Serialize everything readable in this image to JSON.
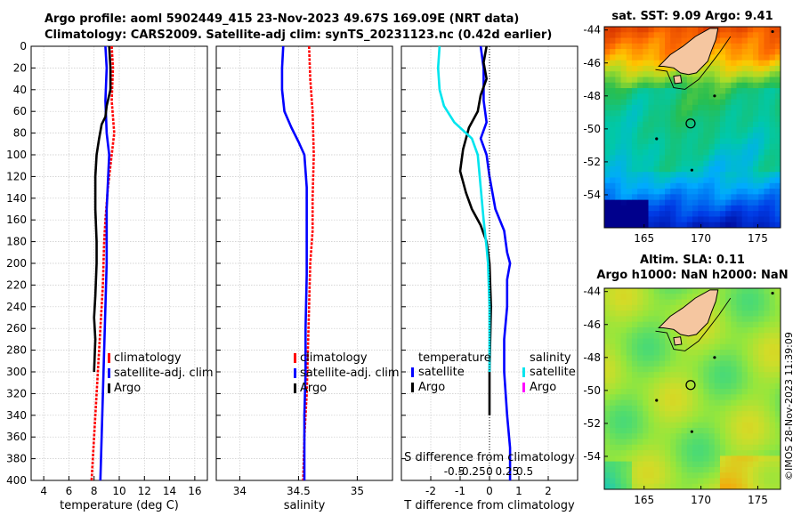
{
  "titles": {
    "line1": "Argo profile: aoml 5902449_415 23-Nov-2023 49.67S 169.09E (NRT data)",
    "line2": "Climatology: CARS2009. Satellite-adj clim: synTS_20231123.nc (0.42d earlier)"
  },
  "stamp": "©IMOS 28-Nov-2023 11:39:09",
  "colors": {
    "climatology": "#ff0000",
    "satellite": "#0000ff",
    "argo": "#000000",
    "satellite_salinity": "#00e5ee",
    "argo_salinity": "#ff00ff",
    "land": "#f5c6a0"
  },
  "chart_data": [
    {
      "type": "line",
      "id": "temperature",
      "xlabel": "temperature (deg C)",
      "ylabel": "",
      "xlim": [
        3,
        17
      ],
      "ylim": [
        0,
        400
      ],
      "xticks": [
        4,
        6,
        8,
        10,
        12,
        14,
        16
      ],
      "yticks": [
        0,
        20,
        40,
        60,
        80,
        100,
        120,
        140,
        160,
        180,
        200,
        220,
        240,
        260,
        280,
        300,
        320,
        340,
        360,
        380,
        400
      ],
      "grid": true,
      "legend": {
        "position": "bottom-right",
        "entries": [
          "climatology",
          "satellite-adj. clim",
          "Argo"
        ]
      },
      "series": [
        {
          "name": "climatology",
          "color": "#ff0000",
          "points": [
            [
              9.4,
              0
            ],
            [
              9.5,
              20
            ],
            [
              9.4,
              50
            ],
            [
              9.6,
              80
            ],
            [
              9.3,
              110
            ],
            [
              9.1,
              130
            ],
            [
              8.9,
              160
            ],
            [
              8.8,
              180
            ],
            [
              8.7,
              220
            ],
            [
              8.5,
              260
            ],
            [
              8.3,
              300
            ],
            [
              8.1,
              340
            ],
            [
              7.9,
              380
            ],
            [
              7.8,
              400
            ]
          ]
        },
        {
          "name": "satellite-adj. clim",
          "color": "#0000ff",
          "points": [
            [
              8.9,
              0
            ],
            [
              9.0,
              20
            ],
            [
              8.9,
              50
            ],
            [
              9.0,
              80
            ],
            [
              9.2,
              100
            ],
            [
              9.0,
              150
            ],
            [
              9.0,
              200
            ],
            [
              8.9,
              240
            ],
            [
              8.8,
              280
            ],
            [
              8.7,
              320
            ],
            [
              8.6,
              360
            ],
            [
              8.5,
              400
            ]
          ]
        },
        {
          "name": "Argo",
          "color": "#000000",
          "points": [
            [
              9.2,
              0
            ],
            [
              9.3,
              20
            ],
            [
              9.3,
              40
            ],
            [
              9.0,
              55
            ],
            [
              8.9,
              65
            ],
            [
              8.6,
              72
            ],
            [
              8.4,
              85
            ],
            [
              8.2,
              100
            ],
            [
              8.1,
              120
            ],
            [
              8.1,
              150
            ],
            [
              8.2,
              180
            ],
            [
              8.2,
              200
            ],
            [
              8.1,
              230
            ],
            [
              8.0,
              250
            ],
            [
              8.1,
              270
            ],
            [
              8.0,
              300
            ]
          ]
        }
      ]
    },
    {
      "type": "line",
      "id": "salinity",
      "xlabel": "salinity",
      "ylabel": "",
      "xlim": [
        33.8,
        35.3
      ],
      "ylim": [
        0,
        400
      ],
      "xticks": [
        34,
        34.5,
        35
      ],
      "grid": true,
      "legend": {
        "position": "bottom-right",
        "entries": [
          "climatology",
          "satellite-adj. clim",
          "Argo"
        ]
      },
      "series": [
        {
          "name": "climatology",
          "color": "#ff0000",
          "points": [
            [
              34.59,
              0
            ],
            [
              34.6,
              30
            ],
            [
              34.62,
              60
            ],
            [
              34.63,
              100
            ],
            [
              34.62,
              140
            ],
            [
              34.62,
              170
            ],
            [
              34.6,
              200
            ],
            [
              34.59,
              240
            ],
            [
              34.58,
              280
            ],
            [
              34.57,
              320
            ],
            [
              34.55,
              360
            ],
            [
              34.54,
              400
            ]
          ]
        },
        {
          "name": "satellite-adj. clim",
          "color": "#0000ff",
          "points": [
            [
              34.37,
              0
            ],
            [
              34.36,
              20
            ],
            [
              34.36,
              40
            ],
            [
              34.38,
              60
            ],
            [
              34.44,
              75
            ],
            [
              34.5,
              88
            ],
            [
              34.55,
              100
            ],
            [
              34.57,
              130
            ],
            [
              34.57,
              170
            ],
            [
              34.57,
              210
            ],
            [
              34.56,
              260
            ],
            [
              34.56,
              300
            ],
            [
              34.55,
              340
            ],
            [
              34.55,
              380
            ],
            [
              34.55,
              400
            ]
          ]
        }
      ]
    },
    {
      "type": "line",
      "id": "difference",
      "xlabel": "T difference from climatology",
      "xlabel_top": "S difference from climatology",
      "ylabel": "",
      "xlim": [
        -3,
        3
      ],
      "ylim": [
        0,
        400
      ],
      "xticks": [
        -2,
        -1,
        0,
        1,
        2
      ],
      "xtick_labels": [
        "-2",
        "-1",
        "0",
        "1",
        "2"
      ],
      "s_ticks": [
        -0.5,
        -0.25,
        0,
        0.25,
        0.5
      ],
      "s_tick_labels": [
        "-0.5",
        "-0.25",
        "0",
        "0.25",
        "0.5"
      ],
      "grid": true,
      "legend_left": {
        "title": "temperature",
        "entries": [
          "satellite",
          "Argo"
        ]
      },
      "legend_right": {
        "title": "salinity",
        "entries": [
          "satellite",
          "Argo"
        ]
      },
      "series": [
        {
          "name": "temperature satellite",
          "color": "#0000ff",
          "points": [
            [
              -0.3,
              0
            ],
            [
              -0.2,
              20
            ],
            [
              -0.2,
              50
            ],
            [
              -0.1,
              70
            ],
            [
              -0.3,
              85
            ],
            [
              -0.1,
              100
            ],
            [
              0.0,
              120
            ],
            [
              0.2,
              150
            ],
            [
              0.5,
              170
            ],
            [
              0.6,
              190
            ],
            [
              0.7,
              200
            ],
            [
              0.6,
              215
            ],
            [
              0.6,
              240
            ],
            [
              0.5,
              270
            ],
            [
              0.5,
              300
            ],
            [
              0.6,
              340
            ],
            [
              0.7,
              370
            ],
            [
              0.7,
              400
            ]
          ]
        },
        {
          "name": "temperature Argo",
          "color": "#000000",
          "points": [
            [
              -0.1,
              0
            ],
            [
              -0.2,
              15
            ],
            [
              -0.1,
              30
            ],
            [
              -0.3,
              45
            ],
            [
              -0.4,
              60
            ],
            [
              -0.7,
              75
            ],
            [
              -0.9,
              95
            ],
            [
              -1.0,
              115
            ],
            [
              -0.8,
              135
            ],
            [
              -0.6,
              150
            ],
            [
              -0.3,
              165
            ],
            [
              -0.1,
              180
            ],
            [
              0.0,
              200
            ],
            [
              0.05,
              240
            ],
            [
              0.0,
              300
            ],
            [
              0.0,
              340
            ]
          ]
        },
        {
          "name": "salinity satellite",
          "color": "#00e5ee",
          "points": [
            [
              -1.7,
              0
            ],
            [
              -1.75,
              20
            ],
            [
              -1.7,
              40
            ],
            [
              -1.55,
              55
            ],
            [
              -1.2,
              70
            ],
            [
              -0.6,
              85
            ],
            [
              -0.4,
              100
            ],
            [
              -0.3,
              130
            ],
            [
              -0.2,
              160
            ],
            [
              -0.1,
              185
            ],
            [
              -0.05,
              200
            ],
            [
              0.0,
              240
            ],
            [
              0.0,
              300
            ]
          ]
        }
      ]
    },
    {
      "type": "heatmap",
      "id": "sst-map",
      "title": "sat. SST: 9.09 Argo: 9.41",
      "xlim": [
        161.5,
        177
      ],
      "ylim": [
        -56,
        -43.8
      ],
      "xticks": [
        165,
        170,
        175
      ],
      "yticks": [
        -44,
        -46,
        -48,
        -50,
        -52,
        -54
      ],
      "argo_position": [
        169.09,
        -49.67
      ]
    },
    {
      "type": "heatmap",
      "id": "sla-map",
      "title": "Altim. SLA: 0.11",
      "subtitle": "Argo h1000: NaN h2000: NaN",
      "xlim": [
        161.5,
        177
      ],
      "ylim": [
        -56,
        -43.8
      ],
      "xticks": [
        165,
        170,
        175
      ],
      "yticks": [
        -44,
        -46,
        -48,
        -50,
        -52,
        -54
      ],
      "argo_position": [
        169.09,
        -49.67
      ]
    }
  ]
}
